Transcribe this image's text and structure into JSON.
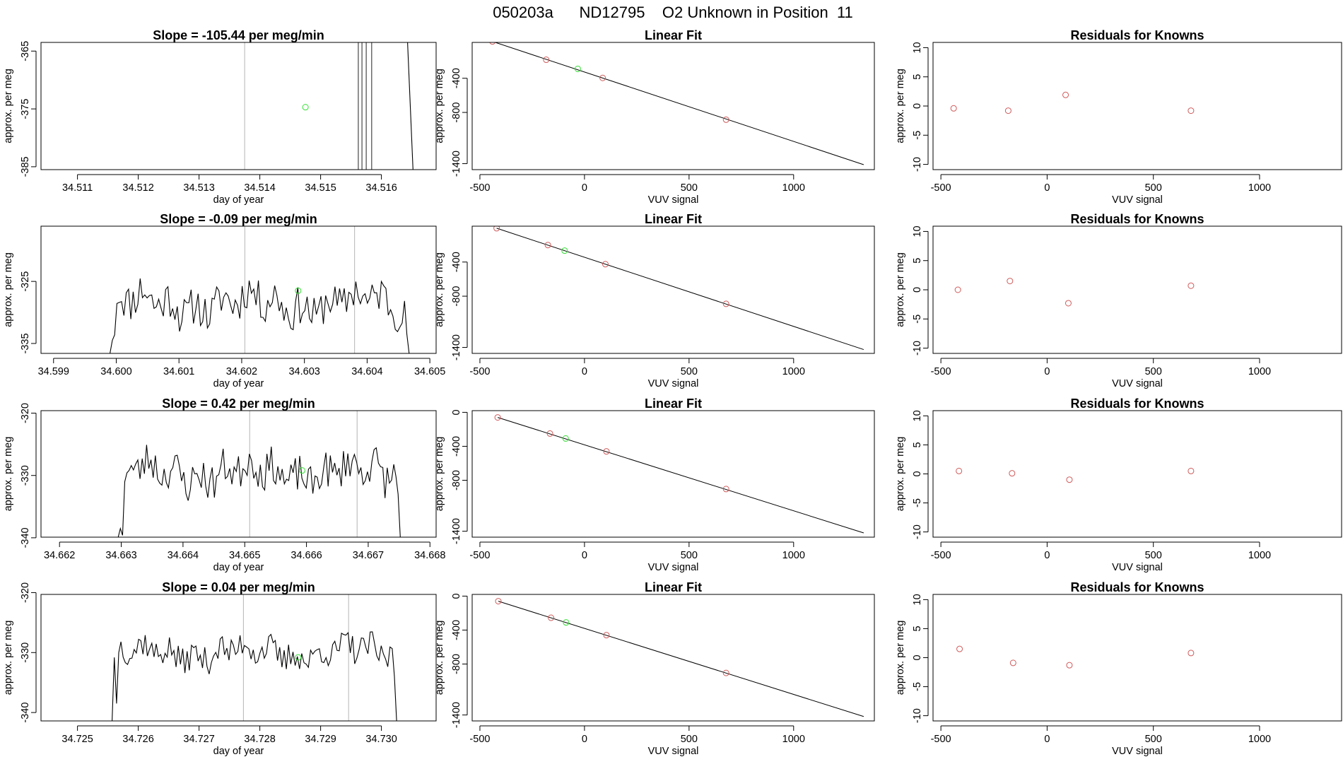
{
  "main_title": "050203a      ND12795    O2 Unknown in Position  11",
  "colors": {
    "known": "#d05a5a",
    "unknown": "#33e033",
    "line": "#000000",
    "vline": "#b4b4b4"
  },
  "chart_data": [
    {
      "type": "line",
      "row": 0,
      "col": 0,
      "title": "Slope =  -105.44  per meg/min",
      "xlabel": "day of year",
      "ylabel": "approx. per meg",
      "xlim": [
        34.5104,
        34.5169
      ],
      "ylim": [
        -385.5,
        -363.5
      ],
      "xticks": [
        34.511,
        34.512,
        34.513,
        34.514,
        34.515,
        34.516
      ],
      "xtick_labels": [
        "34.511",
        "34.512",
        "34.513",
        "34.514",
        "34.515",
        "34.516"
      ],
      "yticks": [
        -365,
        -375,
        -385
      ],
      "ytick_labels": [
        "-365",
        "-375",
        "-385"
      ],
      "vlines": [
        34.51375
      ],
      "dark_vlines": [
        34.51562,
        34.51568,
        34.51575,
        34.51584
      ],
      "trace": {
        "x": [
          34.51643,
          34.51652
        ],
        "y": [
          -363.5,
          -385.5
        ]
      },
      "unknown_point": {
        "x": 34.51475,
        "y": -374.7
      }
    },
    {
      "type": "line",
      "row": 1,
      "col": 0,
      "title": "Slope =  -0.09  per meg/min",
      "xlabel": "day of year",
      "ylabel": "approx. per meg",
      "xlim": [
        34.5988,
        34.6051
      ],
      "ylim": [
        -336.6,
        -316.1
      ],
      "xticks": [
        34.599,
        34.6,
        34.601,
        34.602,
        34.603,
        34.604,
        34.605
      ],
      "xtick_labels": [
        "34.599",
        "34.600",
        "34.601",
        "34.602",
        "34.603",
        "34.604",
        "34.605"
      ],
      "yticks": [
        -325,
        -335
      ],
      "ytick_labels": [
        "-325",
        "-335"
      ],
      "vlines": [
        34.60205,
        34.6038
      ],
      "trace": {
        "x_start": 34.5999,
        "x_end": 34.60467,
        "seed": 11,
        "level": -328.5,
        "amp": 3.2,
        "head": [
          -336.6,
          -334.5,
          -333.6
        ],
        "tail": [
          -333.5,
          -336.6
        ]
      },
      "unknown_point": {
        "x": 34.6029,
        "y": -326.5
      }
    },
    {
      "type": "line",
      "row": 2,
      "col": 0,
      "title": "Slope =  0.42  per meg/min",
      "xlabel": "day of year",
      "ylabel": "approx. per meg",
      "xlim": [
        34.6617,
        34.6681
      ],
      "ylim": [
        -339.9,
        -319.6
      ],
      "xticks": [
        34.662,
        34.663,
        34.664,
        34.665,
        34.666,
        34.667,
        34.668
      ],
      "xtick_labels": [
        "34.662",
        "34.663",
        "34.664",
        "34.665",
        "34.666",
        "34.667",
        "34.668"
      ],
      "yticks": [
        -320,
        -330,
        -340
      ],
      "ytick_labels": [
        "-320",
        "-330",
        "-340"
      ],
      "vlines": [
        34.66508,
        34.66682
      ],
      "trace": {
        "x_start": 34.66295,
        "x_end": 34.66752,
        "seed": 23,
        "level": -329.5,
        "amp": 3.0,
        "head": [
          -339.9,
          -338.5,
          -339.6,
          -331.0
        ],
        "tail": [
          -333.0,
          -339.9
        ]
      },
      "unknown_point": {
        "x": 34.66593,
        "y": -329.2
      }
    },
    {
      "type": "line",
      "row": 3,
      "col": 0,
      "title": "Slope =  0.04  per meg/min",
      "xlabel": "day of year",
      "ylabel": "approx. per meg",
      "xlim": [
        34.7244,
        34.7309
      ],
      "ylim": [
        -341.4,
        -320.3
      ],
      "xticks": [
        34.725,
        34.726,
        34.727,
        34.728,
        34.729,
        34.73
      ],
      "xtick_labels": [
        "34.725",
        "34.726",
        "34.727",
        "34.728",
        "34.729",
        "34.730"
      ],
      "yticks": [
        -320,
        -330,
        -340
      ],
      "ytick_labels": [
        "-320",
        "-330",
        "-340"
      ],
      "vlines": [
        34.72773,
        34.72946
      ],
      "trace": {
        "x_start": 34.72557,
        "x_end": 34.73025,
        "seed": 37,
        "level": -330.0,
        "amp": 2.4,
        "head": [
          -341.4,
          -330.8,
          -338.5
        ],
        "tail": [
          -334.0,
          -341.4
        ]
      },
      "unknown_point": {
        "x": 34.72863,
        "y": -330.8
      }
    },
    {
      "type": "scatter",
      "row": 0,
      "col": 1,
      "title": "Linear Fit",
      "xlabel": "VUV signal",
      "ylabel": "approx. per meg",
      "xlim": [
        -537,
        1386
      ],
      "ylim": [
        -1470,
        20
      ],
      "xticks": [
        -500,
        0,
        500,
        1000
      ],
      "xtick_labels": [
        "-500",
        "0",
        "500",
        "1000"
      ],
      "yticks": [
        -400,
        -800,
        -1400
      ],
      "ytick_labels": [
        "-400",
        "-800",
        "-1400"
      ],
      "fit_line": {
        "x": [
          -440,
          1335
        ],
        "y": [
          31,
          -1412
        ]
      },
      "knowns": [
        {
          "x": -440,
          "y": 31
        },
        {
          "x": -183,
          "y": -183
        },
        {
          "x": 87,
          "y": -396
        },
        {
          "x": 677,
          "y": -885
        }
      ],
      "unknown": {
        "x": -32,
        "y": -290
      }
    },
    {
      "type": "scatter",
      "row": 1,
      "col": 1,
      "title": "Linear Fit",
      "xlabel": "VUV signal",
      "ylabel": "approx. per meg",
      "xlim": [
        -537,
        1386
      ],
      "ylim": [
        -1470,
        20
      ],
      "xticks": [
        -500,
        0,
        500,
        1000
      ],
      "xtick_labels": [
        "-500",
        "0",
        "500",
        "1000"
      ],
      "yticks": [
        -400,
        -800,
        -1400
      ],
      "ytick_labels": [
        "-400",
        "-800",
        "-1400"
      ],
      "fit_line": {
        "x": [
          -420,
          1335
        ],
        "y": [
          -4,
          -1425
        ]
      },
      "knowns": [
        {
          "x": -420,
          "y": -4
        },
        {
          "x": -175,
          "y": -201
        },
        {
          "x": 100,
          "y": -425
        },
        {
          "x": 677,
          "y": -890
        }
      ],
      "unknown": {
        "x": -95,
        "y": -267
      }
    },
    {
      "type": "scatter",
      "row": 2,
      "col": 1,
      "title": "Linear Fit",
      "xlabel": "VUV signal",
      "ylabel": "approx. per meg",
      "xlim": [
        -537,
        1386
      ],
      "ylim": [
        -1470,
        20
      ],
      "xticks": [
        -500,
        0,
        500,
        1000
      ],
      "xtick_labels": [
        "-500",
        "0",
        "500",
        "1000"
      ],
      "yticks": [
        0,
        -400,
        -800,
        -1400
      ],
      "ytick_labels": [
        "0",
        "-400",
        "-800",
        "-1400"
      ],
      "fit_line": {
        "x": [
          -415,
          1335
        ],
        "y": [
          -60,
          -1420
        ]
      },
      "knowns": [
        {
          "x": -415,
          "y": -60
        },
        {
          "x": -165,
          "y": -250
        },
        {
          "x": 105,
          "y": -460
        },
        {
          "x": 677,
          "y": -903
        }
      ],
      "unknown": {
        "x": -90,
        "y": -308
      }
    },
    {
      "type": "scatter",
      "row": 3,
      "col": 1,
      "title": "Linear Fit",
      "xlabel": "VUV signal",
      "ylabel": "approx. per meg",
      "xlim": [
        -537,
        1386
      ],
      "ylim": [
        -1470,
        20
      ],
      "xticks": [
        -500,
        0,
        500,
        1000
      ],
      "xtick_labels": [
        "-500",
        "0",
        "500",
        "1000"
      ],
      "yticks": [
        0,
        -400,
        -800,
        -1400
      ],
      "ytick_labels": [
        "0",
        "-400",
        "-800",
        "-1400"
      ],
      "fit_line": {
        "x": [
          -412,
          1335
        ],
        "y": [
          -60,
          -1418
        ]
      },
      "knowns": [
        {
          "x": -412,
          "y": -60
        },
        {
          "x": -160,
          "y": -255
        },
        {
          "x": 105,
          "y": -460
        },
        {
          "x": 677,
          "y": -905
        }
      ],
      "unknown": {
        "x": -88,
        "y": -310
      }
    },
    {
      "type": "scatter",
      "row": 0,
      "col": 2,
      "title": "Residuals for Knowns",
      "xlabel": "VUV signal",
      "ylabel": "approx. per meg",
      "xlim": [
        -537,
        1386
      ],
      "ylim": [
        -10.9,
        10.9
      ],
      "xticks": [
        -500,
        0,
        500,
        1000
      ],
      "xtick_labels": [
        "-500",
        "0",
        "500",
        "1000"
      ],
      "yticks": [
        10,
        5,
        0,
        -5,
        -10
      ],
      "ytick_labels": [
        "10",
        "5",
        "0",
        "-5",
        "-10"
      ],
      "knowns": [
        {
          "x": -440,
          "y": -0.4
        },
        {
          "x": -183,
          "y": -0.8
        },
        {
          "x": 87,
          "y": 1.9
        },
        {
          "x": 677,
          "y": -0.8
        }
      ]
    },
    {
      "type": "scatter",
      "row": 1,
      "col": 2,
      "title": "Residuals for Knowns",
      "xlabel": "VUV signal",
      "ylabel": "approx. per meg",
      "xlim": [
        -537,
        1386
      ],
      "ylim": [
        -10.9,
        10.9
      ],
      "xticks": [
        -500,
        0,
        500,
        1000
      ],
      "xtick_labels": [
        "-500",
        "0",
        "500",
        "1000"
      ],
      "yticks": [
        10,
        5,
        0,
        -5,
        -10
      ],
      "ytick_labels": [
        "10",
        "5",
        "0",
        "-5",
        "-10"
      ],
      "knowns": [
        {
          "x": -420,
          "y": 0.0
        },
        {
          "x": -175,
          "y": 1.5
        },
        {
          "x": 100,
          "y": -2.3
        },
        {
          "x": 677,
          "y": 0.7
        }
      ]
    },
    {
      "type": "scatter",
      "row": 2,
      "col": 2,
      "title": "Residuals for Knowns",
      "xlabel": "VUV signal",
      "ylabel": "approx. per meg",
      "xlim": [
        -537,
        1386
      ],
      "ylim": [
        -10.9,
        10.9
      ],
      "xticks": [
        -500,
        0,
        500,
        1000
      ],
      "xtick_labels": [
        "-500",
        "0",
        "500",
        "1000"
      ],
      "yticks": [
        10,
        5,
        0,
        -5,
        -10
      ],
      "ytick_labels": [
        "10",
        "5",
        "0",
        "-5",
        "-10"
      ],
      "knowns": [
        {
          "x": -415,
          "y": 0.5
        },
        {
          "x": -165,
          "y": 0.1
        },
        {
          "x": 105,
          "y": -1.0
        },
        {
          "x": 677,
          "y": 0.5
        }
      ]
    },
    {
      "type": "scatter",
      "row": 3,
      "col": 2,
      "title": "Residuals for Knowns",
      "xlabel": "VUV signal",
      "ylabel": "approx. per meg",
      "xlim": [
        -537,
        1386
      ],
      "ylim": [
        -10.9,
        10.9
      ],
      "xticks": [
        -500,
        0,
        500,
        1000
      ],
      "xtick_labels": [
        "-500",
        "0",
        "500",
        "1000"
      ],
      "yticks": [
        10,
        5,
        0,
        -5,
        -10
      ],
      "ytick_labels": [
        "10",
        "5",
        "0",
        "-5",
        "-10"
      ],
      "knowns": [
        {
          "x": -412,
          "y": 1.5
        },
        {
          "x": -160,
          "y": -0.9
        },
        {
          "x": 105,
          "y": -1.3
        },
        {
          "x": 677,
          "y": 0.8
        }
      ]
    }
  ]
}
